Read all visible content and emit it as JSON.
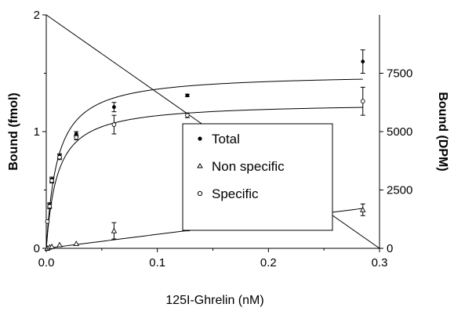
{
  "chart_data": {
    "type": "scatter",
    "title": "",
    "xlabel": "125I-Ghrelin (nM)",
    "ylabel": "Bound (fmol)",
    "y2label": "Bound (DPM)",
    "xlim": [
      0,
      0.3
    ],
    "ylim": [
      0,
      2
    ],
    "y2lim": [
      0,
      10000
    ],
    "x_ticks": [
      "0.0",
      "0.1",
      "0.2",
      "0.3"
    ],
    "y_ticks": [
      "0",
      "1",
      "2"
    ],
    "y2_ticks": [
      "0",
      "2500",
      "5000",
      "7500"
    ],
    "grid": false,
    "legend_position": "center-right",
    "series": [
      {
        "name": "Total",
        "marker": "filled-circle",
        "x": [
          0.001,
          0.003,
          0.005,
          0.012,
          0.027,
          0.061,
          0.127,
          0.285
        ],
        "y": [
          0.23,
          0.37,
          0.59,
          0.79,
          0.98,
          1.21,
          1.31,
          1.6
        ],
        "err": [
          0.0,
          0.02,
          0.02,
          0.02,
          0.02,
          0.04,
          0.01,
          0.1
        ]
      },
      {
        "name": "Non specific",
        "marker": "open-triangle",
        "x": [
          0.001,
          0.003,
          0.005,
          0.012,
          0.027,
          0.061,
          0.127,
          0.285
        ],
        "y": [
          0.0,
          0.01,
          0.015,
          0.03,
          0.04,
          0.15,
          0.17,
          0.33
        ],
        "err": [
          0.0,
          0.0,
          0.0,
          0.0,
          0.0,
          0.07,
          0.02,
          0.05
        ]
      },
      {
        "name": "Specific",
        "marker": "open-circle",
        "x": [
          0.001,
          0.003,
          0.005,
          0.012,
          0.027,
          0.061,
          0.127,
          0.285
        ],
        "y": [
          0.23,
          0.36,
          0.58,
          0.78,
          0.95,
          1.06,
          1.14,
          1.26
        ],
        "err": [
          0.0,
          0.02,
          0.02,
          0.02,
          0.02,
          0.08,
          0.02,
          0.12
        ]
      }
    ],
    "fits": {
      "total": {
        "bmax": 1.5,
        "kd": 0.01,
        "ns_slope": 1.2
      },
      "specific": {
        "bmax": 1.25,
        "kd": 0.01
      },
      "diagonal": {
        "from": [
          0,
          2
        ],
        "to": [
          0.3,
          0
        ]
      }
    }
  }
}
